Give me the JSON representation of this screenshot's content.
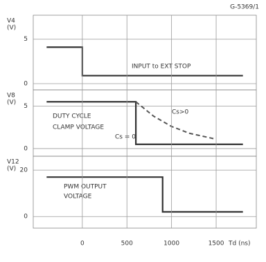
{
  "chart_data": [
    {
      "type": "line",
      "figure_code": "G-5369/1",
      "ylabel": "V4",
      "yunit": "(V)",
      "xlim": [
        -550,
        1950
      ],
      "ylim": [
        -0.7,
        7.7
      ],
      "yticks": [
        0,
        5
      ],
      "series": [
        {
          "color": "#333333",
          "style": "solid",
          "x": [
            -400,
            0,
            0,
            1800
          ],
          "values": [
            4.1,
            4.1,
            0.9,
            0.9
          ]
        }
      ],
      "annotations": [
        "INPUT to EXT STOP"
      ]
    },
    {
      "type": "line",
      "ylabel": "V8",
      "yunit": "(V)",
      "xlim": [
        -550,
        1950
      ],
      "ylim": [
        -0.9,
        6.9
      ],
      "yticks": [
        0,
        5
      ],
      "series": [
        {
          "color": "#333333",
          "style": "solid",
          "x": [
            -400,
            600,
            600,
            1800
          ],
          "values": [
            5.5,
            5.5,
            0.5,
            0.5
          ]
        },
        {
          "color": "#555555",
          "style": "dashed",
          "x": [
            600,
            800,
            1000,
            1200,
            1500
          ],
          "values": [
            5.5,
            3.8,
            2.6,
            1.8,
            1.1
          ]
        }
      ],
      "annotations": [
        "DUTY CYCLE",
        "CLAMP VOLTAGE",
        "Cs = 0",
        "Cs>0"
      ]
    },
    {
      "type": "line",
      "ylabel": "V12",
      "yunit": "(V)",
      "xlim": [
        -550,
        1950
      ],
      "ylim": [
        -5,
        26
      ],
      "yticks": [
        0,
        20
      ],
      "xticks": [
        0,
        500,
        1000,
        1500
      ],
      "xlabel": "Td (ns)",
      "series": [
        {
          "color": "#333333",
          "style": "solid",
          "x": [
            -400,
            900,
            900,
            1800
          ],
          "values": [
            17,
            17,
            2,
            2
          ]
        }
      ],
      "annotations": [
        "PWM OUTPUT",
        "VOLTAGE"
      ]
    }
  ]
}
